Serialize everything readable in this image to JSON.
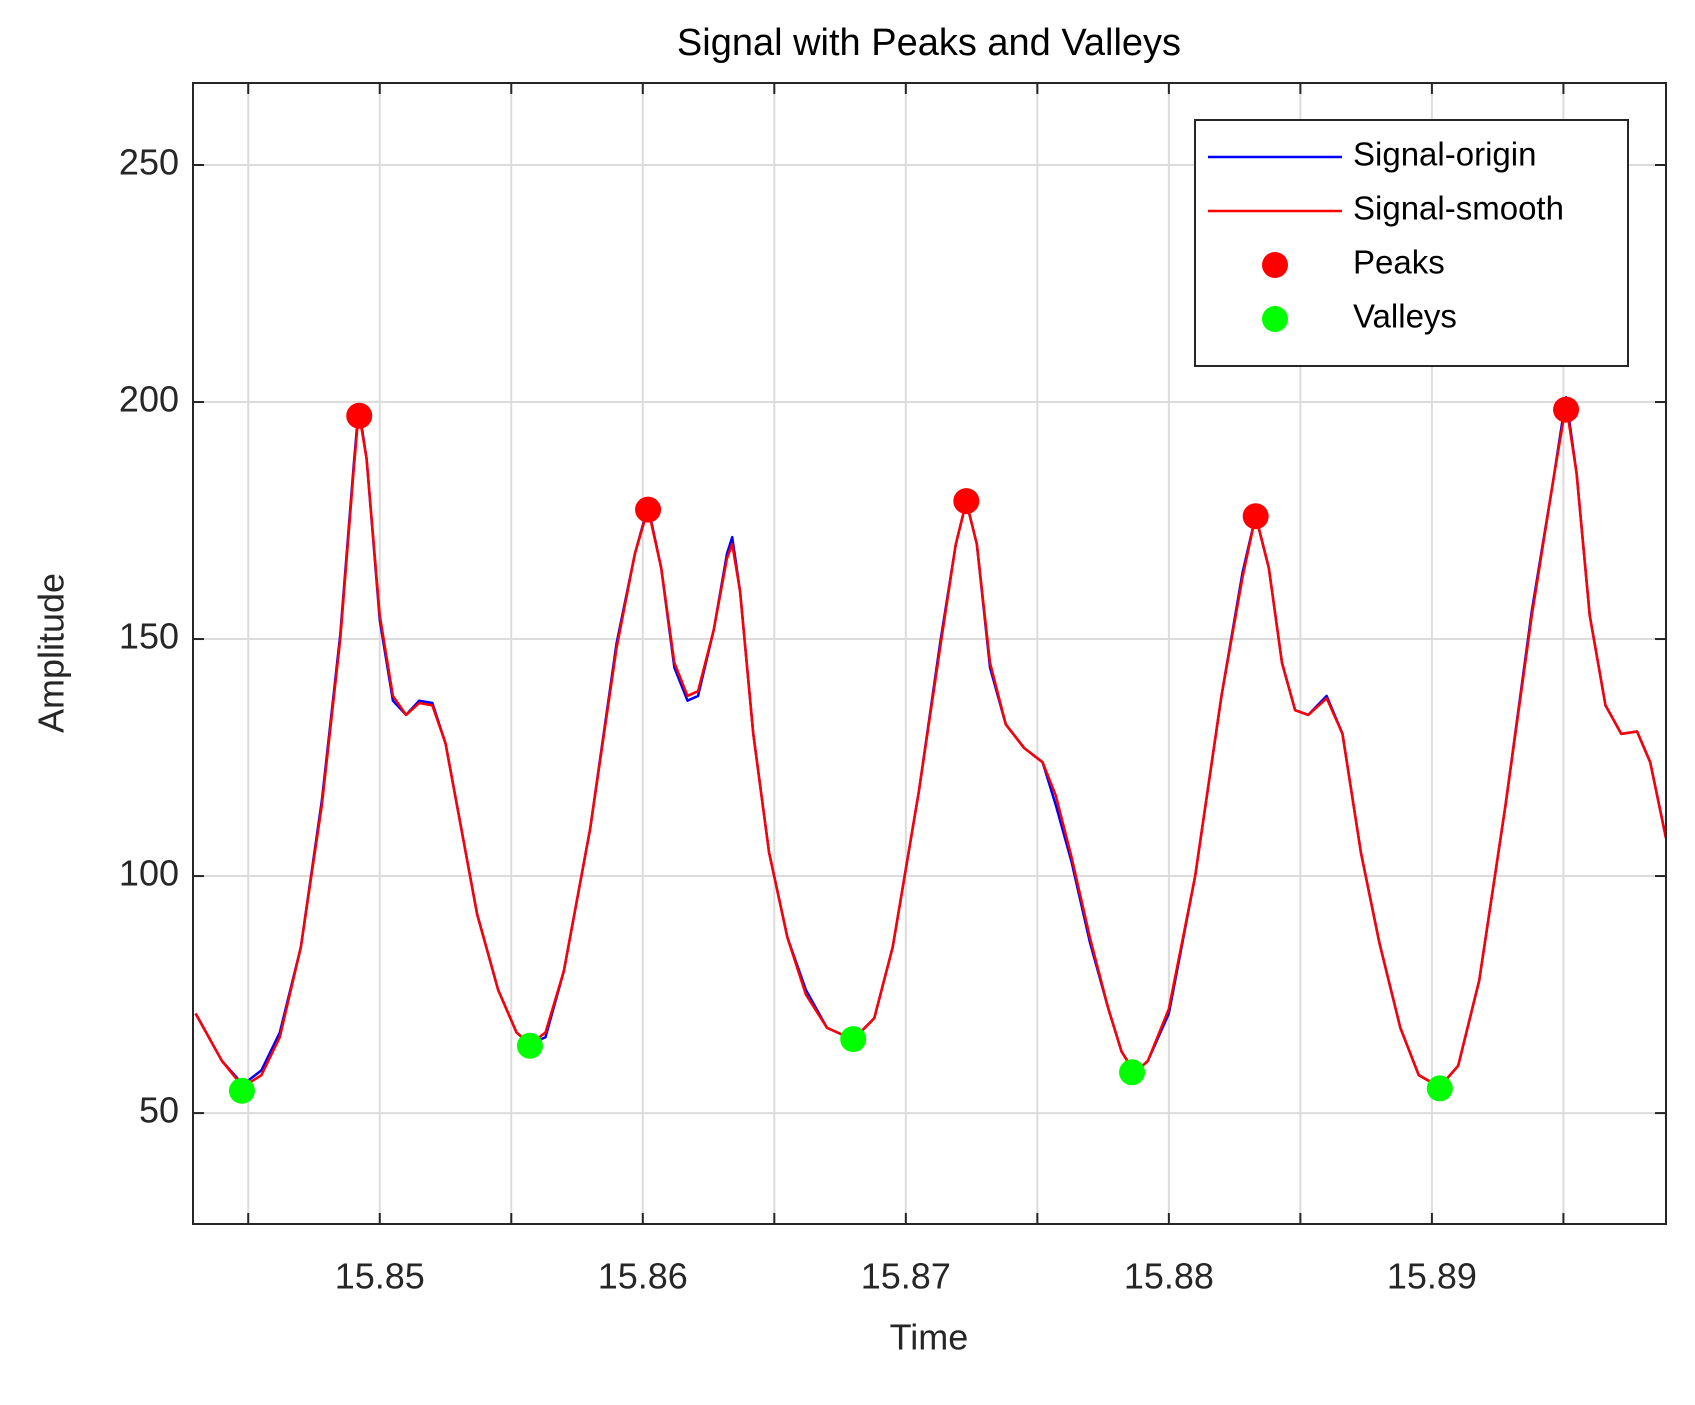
{
  "chart_data": {
    "type": "line",
    "title": "Signal with Peaks and Valleys",
    "x_label": "Time",
    "y_label": "Amplitude",
    "xlim": [
      15.8429,
      15.8989
    ],
    "ylim": [
      26.6,
      267.3
    ],
    "xticks": [
      15.85,
      15.86,
      15.87,
      15.88,
      15.89
    ],
    "xminorticks": [
      15.845,
      15.855,
      15.865,
      15.875,
      15.885,
      15.895
    ],
    "yticks": [
      50,
      100,
      150,
      200,
      250
    ],
    "grid": true,
    "legend": "northeast",
    "series": [
      {
        "name": "Signal-origin",
        "type": "line",
        "color": "#0000ff",
        "x": [
          15.843,
          15.844,
          15.8448,
          15.8455,
          15.8462,
          15.847,
          15.8478,
          15.8485,
          15.849,
          15.8492,
          15.8495,
          15.85,
          15.8505,
          15.851,
          15.8515,
          15.852,
          15.8525,
          15.853,
          15.8537,
          15.8545,
          15.8552,
          15.8557,
          15.8563,
          15.857,
          15.858,
          15.859,
          15.8597,
          15.8602,
          15.8607,
          15.8612,
          15.8617,
          15.8621,
          15.8627,
          15.8632,
          15.8634,
          15.8637,
          15.8642,
          15.8648,
          15.8655,
          15.8662,
          15.867,
          15.868,
          15.8688,
          15.8695,
          15.8705,
          15.8713,
          15.8719,
          15.8723,
          15.8727,
          15.8732,
          15.8738,
          15.8745,
          15.8752,
          15.8757,
          15.8763,
          15.877,
          15.8777,
          15.8782,
          15.8787,
          15.8792,
          15.88,
          15.881,
          15.882,
          15.8828,
          15.8833,
          15.8838,
          15.8843,
          15.8848,
          15.8853,
          15.886,
          15.8866,
          15.8873,
          15.888,
          15.8888,
          15.8895,
          15.8903,
          15.891,
          15.8918,
          15.8928,
          15.8938,
          15.8946,
          15.8951,
          15.8955,
          15.896,
          15.8966,
          15.8972,
          15.8978,
          15.8983,
          15.8989
        ],
        "values": [
          71,
          61,
          56,
          59,
          67,
          85,
          116,
          151,
          186,
          199,
          188,
          154,
          137,
          134,
          137,
          136.5,
          128,
          113,
          92,
          76,
          67,
          64.5,
          66,
          80,
          110,
          149,
          168,
          178,
          165,
          144,
          137,
          138,
          152,
          168,
          171.5,
          160,
          130,
          105,
          87,
          76,
          68,
          65.5,
          70,
          85,
          118,
          149,
          170,
          179,
          170,
          144,
          132,
          127,
          124,
          115,
          103,
          86,
          72,
          63,
          58.5,
          61,
          71,
          100,
          138,
          164,
          176,
          165,
          145,
          135,
          134,
          138,
          130,
          105,
          86,
          68,
          58,
          55.5,
          60,
          78,
          115,
          156,
          183,
          201,
          185,
          155,
          136,
          130,
          130.5,
          124,
          108
        ]
      },
      {
        "name": "Signal-smooth",
        "type": "line",
        "color": "#ff0000",
        "x": [
          15.843,
          15.844,
          15.8448,
          15.8455,
          15.8462,
          15.847,
          15.8478,
          15.8485,
          15.849,
          15.8492,
          15.8495,
          15.85,
          15.8505,
          15.851,
          15.8515,
          15.852,
          15.8525,
          15.853,
          15.8537,
          15.8545,
          15.8552,
          15.8557,
          15.8563,
          15.857,
          15.858,
          15.859,
          15.8597,
          15.8602,
          15.8607,
          15.8612,
          15.8617,
          15.8621,
          15.8627,
          15.8632,
          15.8634,
          15.8637,
          15.8642,
          15.8648,
          15.8655,
          15.8662,
          15.867,
          15.868,
          15.8688,
          15.8695,
          15.8705,
          15.8713,
          15.8719,
          15.8723,
          15.8727,
          15.8732,
          15.8738,
          15.8745,
          15.8752,
          15.8757,
          15.8763,
          15.877,
          15.8777,
          15.8782,
          15.8787,
          15.8792,
          15.88,
          15.881,
          15.882,
          15.8828,
          15.8833,
          15.8838,
          15.8843,
          15.8848,
          15.8853,
          15.886,
          15.8866,
          15.8873,
          15.888,
          15.8888,
          15.8895,
          15.8903,
          15.891,
          15.8918,
          15.8928,
          15.8938,
          15.8946,
          15.8951,
          15.8955,
          15.896,
          15.8966,
          15.8972,
          15.8978,
          15.8983,
          15.8989
        ],
        "values": [
          71,
          61,
          55.5,
          58,
          66,
          85,
          115,
          150,
          185,
          198,
          188,
          155,
          138,
          134,
          136.5,
          136,
          128,
          113,
          92,
          76,
          67,
          64.5,
          67,
          80,
          110,
          148,
          168,
          177.5,
          165,
          145,
          138,
          139,
          152,
          167,
          170,
          160,
          130,
          105,
          87,
          75,
          68,
          65.5,
          70,
          85,
          118,
          148,
          170,
          179,
          170,
          145,
          132,
          127,
          124,
          117,
          104,
          87,
          72,
          63,
          58.5,
          61,
          72,
          100,
          138,
          163,
          176,
          165,
          145,
          135,
          134,
          137.5,
          130,
          105,
          86,
          68,
          58,
          55.5,
          60,
          78,
          115,
          155,
          183,
          199.5,
          185,
          155,
          136,
          130,
          130.5,
          124,
          108
        ]
      },
      {
        "name": "Peaks",
        "type": "scatter",
        "color": "#ff0000",
        "x": [
          15.84922,
          15.8602,
          15.8723,
          15.8833,
          15.8951
        ],
        "values": [
          197.1,
          177.3,
          179.1,
          175.9,
          198.4
        ]
      },
      {
        "name": "Valleys",
        "type": "scatter",
        "color": "#00ff00",
        "x": [
          15.84476,
          15.85571,
          15.868,
          15.8786,
          15.8903
        ],
        "values": [
          54.7,
          64.2,
          65.6,
          58.6,
          55.2
        ]
      }
    ]
  }
}
